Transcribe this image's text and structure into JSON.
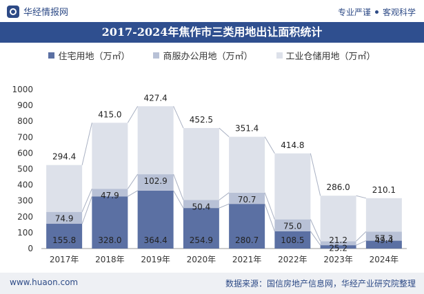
{
  "header": {
    "brand": "华经情报网",
    "slogan_left": "专业严谨",
    "slogan_right": "客观科学"
  },
  "footer": {
    "site": "www.huaon.com",
    "source": "数据来源：国信房地产信息网，华经产业研究院整理"
  },
  "colors": {
    "header_bg": "#2f4f8f",
    "residential": "#5b70a3",
    "commercial": "#b8c1d6",
    "industrial": "#dde1ea"
  },
  "chart_data": {
    "type": "bar",
    "stacked": true,
    "title": "2017-2024年焦作市三类用地出让面积统计",
    "categories": [
      "2017年",
      "2018年",
      "2019年",
      "2020年",
      "2021年",
      "2022年",
      "2023年",
      "2024年"
    ],
    "series": [
      {
        "name": "住宅用地（万㎡）",
        "values": [
          155.8,
          328.0,
          364.4,
          254.9,
          280.7,
          108.5,
          21.2,
          49.4
        ]
      },
      {
        "name": "商服办公用地（万㎡）",
        "values": [
          74.9,
          47.9,
          102.9,
          50.4,
          70.7,
          75.0,
          25.2,
          57.3
        ]
      },
      {
        "name": "工业仓储用地（万㎡）",
        "values": [
          294.4,
          415.0,
          427.4,
          452.5,
          351.4,
          414.8,
          286.0,
          210.1
        ]
      }
    ],
    "ylim": [
      0,
      1000
    ],
    "yticks": [
      0,
      100,
      200,
      300,
      400,
      500,
      600,
      700,
      800,
      900,
      1000
    ],
    "legend": "top"
  }
}
